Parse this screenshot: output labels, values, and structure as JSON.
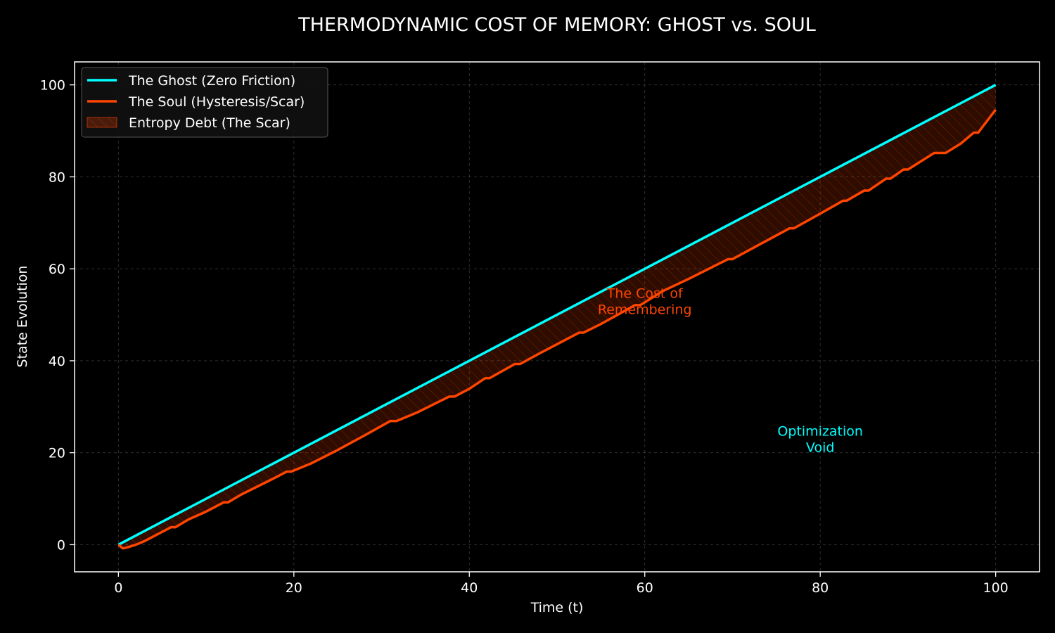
{
  "chart_data": {
    "type": "line",
    "title": "THERMODYNAMIC COST OF MEMORY: GHOST vs. SOUL",
    "xlabel": "Time (t)",
    "ylabel": "State Evolution",
    "xlim": [
      -5,
      105
    ],
    "ylim": [
      -5.9,
      105
    ],
    "xticks": [
      0,
      20,
      40,
      60,
      80,
      100
    ],
    "yticks": [
      0,
      20,
      40,
      60,
      80,
      100
    ],
    "grid": true,
    "legend_position": "top-left",
    "colors": {
      "ghost": "#00FFFF",
      "soul": "#FF4500",
      "background": "#000000",
      "text": "#FFFFFF"
    },
    "series": [
      {
        "name": "The Ghost (Zero Friction)",
        "color": "#00FFFF",
        "x": [
          0,
          100
        ],
        "y": [
          0,
          100
        ]
      },
      {
        "name": "The Soul (Hysteresis/Scar)",
        "color": "#FF4500",
        "x": [
          0,
          0.5,
          1,
          2,
          3,
          4,
          5,
          6,
          6.5,
          8,
          10,
          12,
          12.5,
          14,
          16,
          18,
          19.2,
          19.7,
          22,
          25,
          28,
          31,
          31.7,
          34,
          37.7,
          38.3,
          40,
          41.8,
          42.3,
          45.2,
          45.8,
          48,
          50,
          52.5,
          53,
          55,
          57,
          58.9,
          59.5,
          62,
          65,
          69.5,
          70,
          73,
          76.5,
          77,
          80,
          82.6,
          83,
          85,
          85.5,
          87.5,
          88,
          89.5,
          90,
          93,
          94.3,
          96,
          97.5,
          98,
          100
        ],
        "y": [
          0,
          -0.8,
          -0.6,
          0,
          0.8,
          1.8,
          2.8,
          3.8,
          3.8,
          5.5,
          7.2,
          9.2,
          9.2,
          10.9,
          12.8,
          14.7,
          15.9,
          15.9,
          17.7,
          20.6,
          23.7,
          26.9,
          26.9,
          28.7,
          32.2,
          32.2,
          33.9,
          36.2,
          36.2,
          39.3,
          39.3,
          41.6,
          43.6,
          46.1,
          46.1,
          48,
          50.1,
          52.1,
          52.1,
          55.1,
          57.8,
          62.1,
          62.1,
          65.2,
          68.8,
          68.8,
          72,
          74.8,
          74.8,
          77,
          77,
          79.6,
          79.6,
          81.6,
          81.6,
          85.2,
          85.2,
          87.2,
          89.6,
          89.6,
          94.6
        ]
      }
    ],
    "fill_between": {
      "name": "Entropy Debt (The Scar)",
      "between": [
        "The Ghost (Zero Friction)",
        "The Soul (Hysteresis/Scar)"
      ],
      "color": "#FF4500",
      "hatch": "diagonal"
    },
    "annotations": [
      {
        "lines": [
          "The Cost of",
          "Remembering"
        ],
        "x": 60,
        "y": 52,
        "color": "#FF4500"
      },
      {
        "lines": [
          "Optimization",
          "Void"
        ],
        "x": 80,
        "y": 22,
        "color": "#00FFFF"
      }
    ]
  }
}
